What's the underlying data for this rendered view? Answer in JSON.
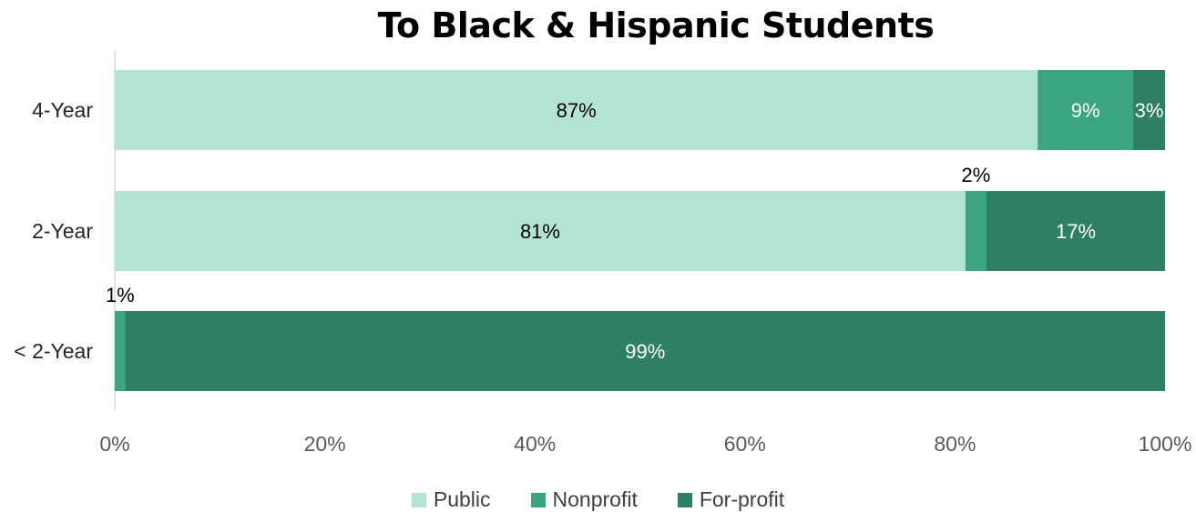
{
  "chart_data": {
    "type": "bar",
    "orientation": "horizontal",
    "stacked": true,
    "percent_stacked": true,
    "title": "To Black & Hispanic Students",
    "categories": [
      "4-Year",
      "2-Year",
      "< 2-Year"
    ],
    "series": [
      {
        "name": "Public",
        "values": [
          87,
          81,
          0
        ],
        "labels": [
          "87%",
          "81%",
          ""
        ],
        "color": "#b3e3d4"
      },
      {
        "name": "Nonprofit",
        "values": [
          9,
          2,
          1
        ],
        "labels": [
          "9%",
          "2%",
          "1%"
        ],
        "color": "#3aa57f"
      },
      {
        "name": "For-profit",
        "values": [
          3,
          17,
          99
        ],
        "labels": [
          "3%",
          "17%",
          "99%"
        ],
        "color": "#2f7f63"
      }
    ],
    "xlim": [
      0,
      100
    ],
    "xticks": [
      "0%",
      "20%",
      "40%",
      "60%",
      "80%",
      "100%"
    ],
    "legend_position": "bottom",
    "grid": false
  }
}
